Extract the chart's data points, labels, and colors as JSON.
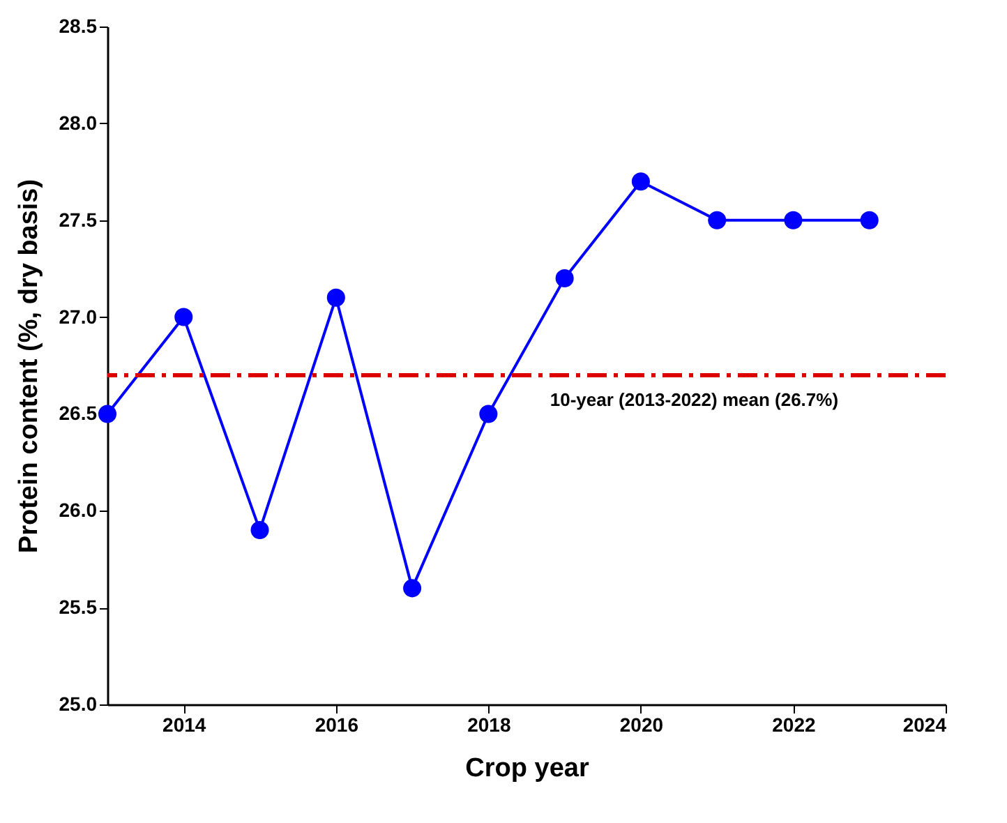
{
  "chart_data": {
    "type": "line",
    "xlabel": "Crop year",
    "ylabel": "Protein content (%, dry basis)",
    "x": [
      2013,
      2014,
      2015,
      2016,
      2017,
      2018,
      2019,
      2020,
      2021,
      2022,
      2023
    ],
    "series": [
      {
        "color": "#0000ff",
        "values": [
          26.5,
          27.0,
          25.9,
          27.1,
          25.6,
          26.5,
          27.2,
          27.7,
          27.5,
          27.5,
          27.5
        ]
      }
    ],
    "xlim": [
      2013,
      2024
    ],
    "xticks": [
      2014,
      2016,
      2018,
      2020,
      2022,
      2024
    ],
    "ylim": [
      25.0,
      28.5
    ],
    "yticks": [
      {
        "value": 25,
        "label": "25.0"
      },
      {
        "value": 25.5,
        "label": "25.5"
      },
      {
        "value": 26,
        "label": "26.0"
      },
      {
        "value": 26.5,
        "label": "26.5"
      },
      {
        "value": 27,
        "label": "27.0"
      },
      {
        "value": 27.5,
        "label": "27.5"
      },
      {
        "value": 28,
        "label": "28.0"
      },
      {
        "value": 28.5,
        "label": "28.5"
      }
    ],
    "ref_lines": [
      {
        "axis": "y",
        "value": 26.7,
        "label": "10-year (2013-2022) mean (26.7%)",
        "color": "#dd0000",
        "line_style": "dashed"
      }
    ],
    "marker": "circle",
    "line_style": "solid",
    "grid": false
  }
}
